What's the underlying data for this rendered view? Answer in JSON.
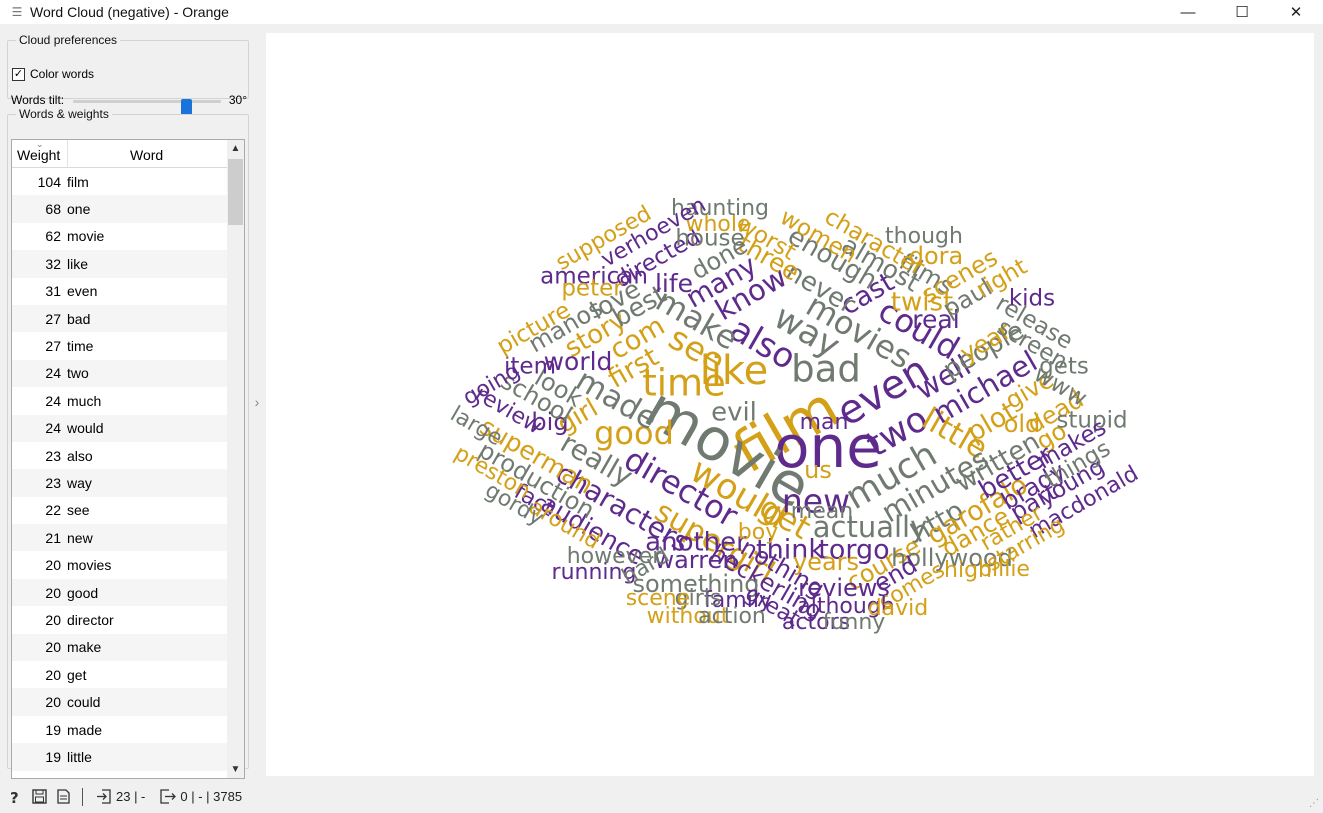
{
  "window": {
    "title": "Word Cloud (negative) - Orange",
    "minimize": "—",
    "maximize": "☐",
    "close": "✕"
  },
  "preferences": {
    "group_title": "Cloud preferences",
    "color_words_label": "Color words",
    "color_words_checked": true,
    "tilt_label": "Words tilt:",
    "tilt_value": "30°"
  },
  "words_table": {
    "group_title": "Words & weights",
    "col_weight": "Weight",
    "col_word": "Word",
    "rows": [
      {
        "weight": "104",
        "word": "film"
      },
      {
        "weight": "68",
        "word": "one"
      },
      {
        "weight": "62",
        "word": "movie"
      },
      {
        "weight": "32",
        "word": "like"
      },
      {
        "weight": "31",
        "word": "even"
      },
      {
        "weight": "27",
        "word": "bad"
      },
      {
        "weight": "27",
        "word": "time"
      },
      {
        "weight": "24",
        "word": "two"
      },
      {
        "weight": "24",
        "word": "much"
      },
      {
        "weight": "24",
        "word": "would"
      },
      {
        "weight": "23",
        "word": "also"
      },
      {
        "weight": "23",
        "word": "way"
      },
      {
        "weight": "22",
        "word": "see"
      },
      {
        "weight": "21",
        "word": "new"
      },
      {
        "weight": "20",
        "word": "movies"
      },
      {
        "weight": "20",
        "word": "good"
      },
      {
        "weight": "20",
        "word": "director"
      },
      {
        "weight": "20",
        "word": "make"
      },
      {
        "weight": "20",
        "word": "get"
      },
      {
        "weight": "20",
        "word": "could"
      },
      {
        "weight": "19",
        "word": "made"
      },
      {
        "weight": "19",
        "word": "little"
      }
    ]
  },
  "colors": {
    "purple": "#5e2a8c",
    "gold": "#d4a018",
    "gray": "#707a70",
    "accent": "#1a73d9"
  },
  "status": {
    "input_count": "23 | -",
    "output_count": "0 | - | 3785"
  },
  "cloud": {
    "words": [
      [
        "film",
        1,
        "gold",
        32
      ],
      [
        "one",
        1,
        "purple",
        25
      ],
      [
        "movie",
        1,
        "gray",
        23
      ],
      [
        "like",
        0.6,
        "gold",
        14
      ],
      [
        "even",
        0.6,
        "purple",
        14
      ],
      [
        "bad",
        0.55,
        "gray",
        13
      ],
      [
        "time",
        0.55,
        "gold",
        13
      ],
      [
        "two",
        0.5,
        "purple",
        12
      ],
      [
        "much",
        0.5,
        "gray",
        11
      ],
      [
        "would",
        0.5,
        "gold",
        12
      ],
      [
        "also",
        0.48,
        "purple",
        11
      ],
      [
        "way",
        0.48,
        "gray",
        11
      ],
      [
        "see",
        0.46,
        "gold",
        11
      ],
      [
        "new",
        0.45,
        "purple",
        11
      ],
      [
        "movies",
        0.43,
        "gray",
        10
      ],
      [
        "good",
        0.43,
        "gold",
        10
      ],
      [
        "director",
        0.43,
        "purple",
        10
      ],
      [
        "make",
        0.43,
        "gray",
        10
      ],
      [
        "get",
        0.43,
        "gold",
        10
      ],
      [
        "could",
        0.43,
        "purple",
        10
      ],
      [
        "made",
        0.41,
        "gray",
        10
      ],
      [
        "little",
        0.41,
        "gold",
        10
      ],
      [
        "supergirl",
        0.4,
        "gold",
        10
      ],
      [
        "michael",
        0.38,
        "purple",
        9
      ],
      [
        "know",
        0.38,
        "purple",
        9
      ],
      [
        "well",
        0.38,
        "purple",
        9
      ],
      [
        "minutes",
        0.37,
        "gray",
        9
      ],
      [
        "actually",
        0.37,
        "gray",
        9
      ],
      [
        "characters",
        0.35,
        "purple",
        8
      ],
      [
        "really",
        0.35,
        "gray",
        8
      ],
      [
        "many",
        0.33,
        "purple",
        8
      ],
      [
        "com",
        0.33,
        "gold",
        8
      ],
      [
        "first",
        0.33,
        "gold",
        8
      ],
      [
        "cast",
        0.33,
        "purple",
        8
      ],
      [
        "http",
        0.33,
        "gray",
        8
      ],
      [
        "plot",
        0.33,
        "gold",
        8
      ],
      [
        "garofalo",
        0.32,
        "gold",
        8
      ],
      [
        "think",
        0.32,
        "purple",
        8
      ],
      [
        "torgo",
        0.32,
        "purple",
        8
      ],
      [
        "never",
        0.3,
        "gray",
        7
      ],
      [
        "enough",
        0.3,
        "gray",
        7
      ],
      [
        "twist",
        0.3,
        "gold",
        7
      ],
      [
        "story",
        0.3,
        "gold",
        7
      ],
      [
        "best",
        0.3,
        "gray",
        7
      ],
      [
        "evil",
        0.3,
        "gray",
        7
      ],
      [
        "girl",
        0.3,
        "gold",
        7
      ],
      [
        "people",
        0.3,
        "gray",
        7
      ],
      [
        "written",
        0.3,
        "gray",
        7
      ],
      [
        "better",
        0.3,
        "purple",
        7
      ],
      [
        "another",
        0.3,
        "purple",
        7
      ],
      [
        "superman",
        0.28,
        "gold",
        7
      ],
      [
        "audience",
        0.28,
        "purple",
        7
      ],
      [
        "world",
        0.28,
        "purple",
        7
      ],
      [
        "love",
        0.28,
        "gray",
        7
      ],
      [
        "life",
        0.28,
        "purple",
        7
      ],
      [
        "three",
        0.28,
        "gold",
        7
      ],
      [
        "almost",
        0.28,
        "gray",
        7
      ],
      [
        "real",
        0.28,
        "purple",
        7
      ],
      [
        "paul",
        0.27,
        "gray",
        6
      ],
      [
        "year",
        0.27,
        "gold",
        6
      ],
      [
        "old",
        0.27,
        "gold",
        6
      ],
      [
        "dead",
        0.27,
        "gold",
        6
      ],
      [
        "dance",
        0.27,
        "gold",
        6
      ],
      [
        "heckerling",
        0.27,
        "purple",
        6
      ],
      [
        "nothing",
        0.27,
        "purple",
        6
      ],
      [
        "years",
        0.27,
        "gold",
        6
      ],
      [
        "course",
        0.27,
        "gold",
        6
      ],
      [
        "warren",
        0.26,
        "purple",
        6
      ],
      [
        "hollywood",
        0.26,
        "gray",
        6
      ],
      [
        "done",
        0.26,
        "gray",
        6
      ],
      [
        "films",
        0.25,
        "gray",
        6
      ],
      [
        "dora",
        0.25,
        "gold",
        6
      ],
      [
        "scenes",
        0.25,
        "gold",
        6
      ],
      [
        "us",
        0.25,
        "gold",
        6
      ],
      [
        "look",
        0.25,
        "gray",
        6
      ],
      [
        "big",
        0.25,
        "purple",
        6
      ],
      [
        "production",
        0.25,
        "gray",
        6
      ],
      [
        "school",
        0.25,
        "gray",
        6
      ],
      [
        "manos",
        0.25,
        "gray",
        6
      ],
      [
        "give",
        0.25,
        "gold",
        6
      ],
      [
        "go",
        0.25,
        "gold",
        6
      ],
      [
        "brady",
        0.25,
        "purple",
        6
      ],
      [
        "part",
        0.25,
        "purple",
        6
      ],
      [
        "something",
        0.25,
        "gray",
        6
      ],
      [
        "reviews",
        0.25,
        "purple",
        6
      ],
      [
        "end",
        0.25,
        "purple",
        6
      ],
      [
        "screen",
        0.24,
        "gray",
        5
      ],
      [
        "women",
        0.24,
        "gold",
        5
      ],
      [
        "character",
        0.24,
        "gold",
        5
      ],
      [
        "worst",
        0.24,
        "gold",
        5
      ],
      [
        "american",
        0.24,
        "purple",
        5
      ],
      [
        "directed",
        0.24,
        "purple",
        5
      ],
      [
        "house",
        0.24,
        "gray",
        5
      ],
      [
        "item",
        0.24,
        "purple",
        5
      ],
      [
        "peter",
        0.24,
        "gold",
        5
      ],
      [
        "picture",
        0.24,
        "gold",
        5
      ],
      [
        "right",
        0.24,
        "gold",
        5
      ],
      [
        "release",
        0.23,
        "gray",
        5
      ],
      [
        "kids",
        0.23,
        "purple",
        5
      ],
      [
        "www",
        0.23,
        "gray",
        5
      ],
      [
        "stupid",
        0.23,
        "gray",
        5
      ],
      [
        "gets",
        0.23,
        "gray",
        5
      ],
      [
        "makes",
        0.23,
        "purple",
        5
      ],
      [
        "young",
        0.23,
        "purple",
        5
      ],
      [
        "things",
        0.23,
        "gray",
        5
      ],
      [
        "macdonald",
        0.22,
        "purple",
        5
      ],
      [
        "rather",
        0.22,
        "gold",
        5
      ],
      [
        "starring",
        0.22,
        "gold",
        5
      ],
      [
        "high",
        0.22,
        "gold",
        5
      ],
      [
        "billie",
        0.22,
        "gold",
        5
      ],
      [
        "comes",
        0.22,
        "gold",
        5
      ],
      [
        "although",
        0.22,
        "purple",
        5
      ],
      [
        "david",
        0.22,
        "gold",
        5
      ],
      [
        "family",
        0.22,
        "purple",
        5
      ],
      [
        "great",
        0.22,
        "purple",
        5
      ],
      [
        "actors",
        0.22,
        "purple",
        5
      ],
      [
        "funny",
        0.22,
        "gray",
        5
      ],
      [
        "girls",
        0.22,
        "gray",
        5
      ],
      [
        "without",
        0.22,
        "gold",
        5
      ],
      [
        "action",
        0.22,
        "gray",
        5
      ],
      [
        "scene",
        0.22,
        "gold",
        5
      ],
      [
        "running",
        0.22,
        "purple",
        5
      ],
      [
        "however",
        0.22,
        "gray",
        5
      ],
      [
        "hard",
        0.22,
        "gray",
        5
      ],
      [
        "mean",
        0.22,
        "gray",
        5
      ],
      [
        "boy",
        0.22,
        "gold",
        5
      ],
      [
        "man",
        0.22,
        "purple",
        5
      ],
      [
        "review",
        0.22,
        "purple",
        5
      ],
      [
        "fact",
        0.22,
        "purple",
        5
      ],
      [
        "around",
        0.22,
        "gold",
        5
      ],
      [
        "gordy",
        0.22,
        "gray",
        5
      ],
      [
        "preston",
        0.22,
        "gold",
        5
      ],
      [
        "large",
        0.22,
        "gray",
        5
      ],
      [
        "going",
        0.22,
        "purple",
        5
      ],
      [
        "whole",
        0.22,
        "gold",
        5
      ],
      [
        "haunting",
        0.22,
        "gray",
        5
      ],
      [
        "verhoeven",
        0.22,
        "purple",
        5
      ],
      [
        "supposed",
        0.22,
        "gold",
        5
      ],
      [
        "though",
        0.22,
        "gray",
        5
      ]
    ]
  }
}
